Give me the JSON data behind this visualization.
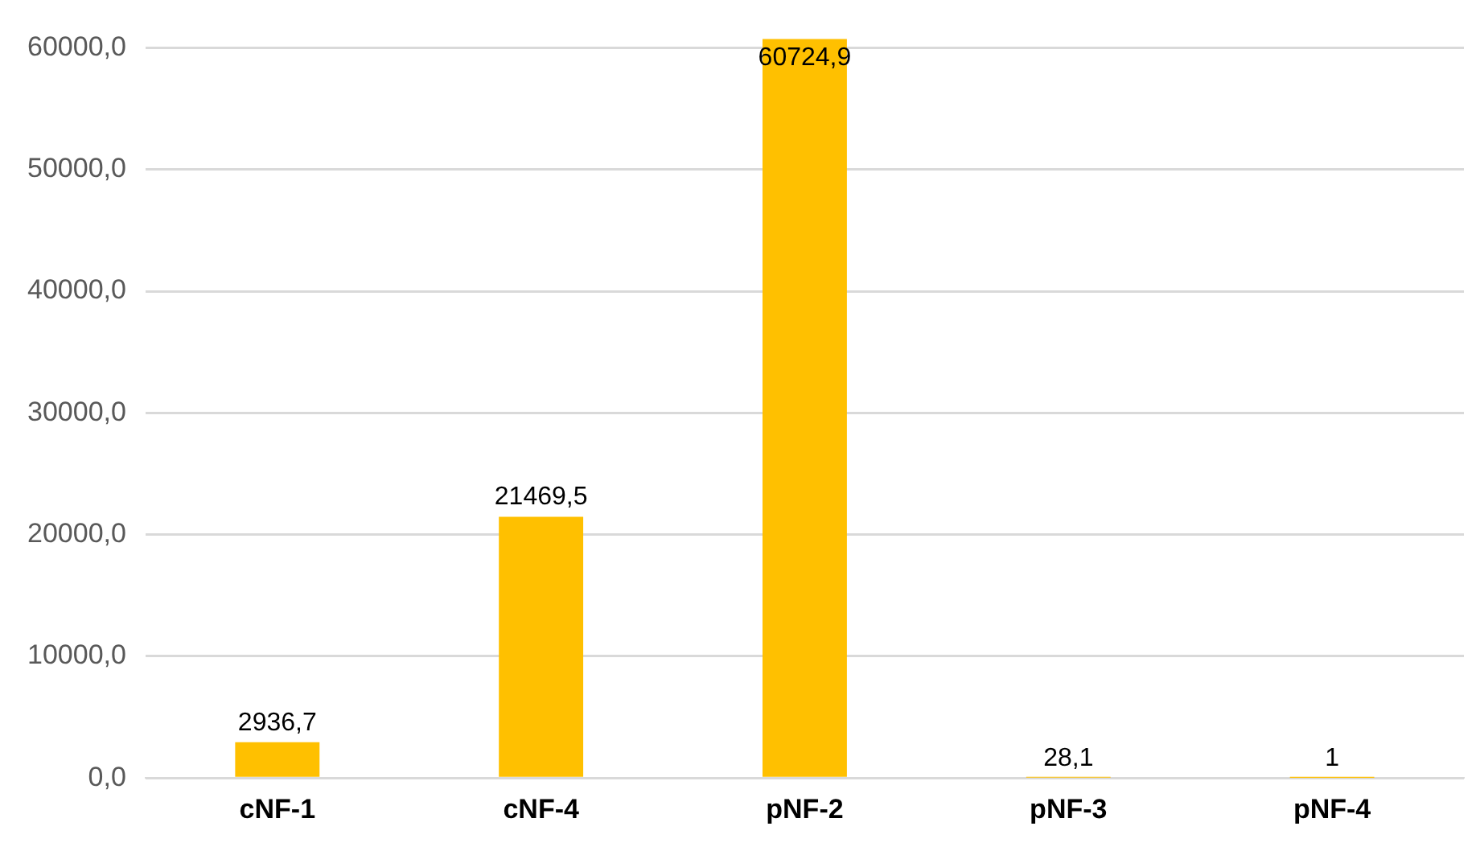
{
  "chart_data": {
    "type": "bar",
    "categories": [
      "cNF-1",
      "cNF-4",
      "pNF-2",
      "pNF-3",
      "pNF-4"
    ],
    "values": [
      2936.7,
      21469.5,
      60724.9,
      28.1,
      1
    ],
    "color": "#ffc000",
    "value_labels": [
      "2936,7",
      "21469,5",
      "60724,9",
      "28,1",
      "1"
    ],
    "ylim": [
      0,
      61000
    ],
    "yticks": [
      {
        "value": 0,
        "label": "0,0"
      },
      {
        "value": 10000,
        "label": "10000,0"
      },
      {
        "value": 20000,
        "label": "20000,0"
      },
      {
        "value": 30000,
        "label": "30000,0"
      },
      {
        "value": 40000,
        "label": "40000,0"
      },
      {
        "value": 50000,
        "label": "50000,0"
      },
      {
        "value": 60000,
        "label": "60000,0"
      }
    ],
    "grid": "y",
    "legend": false
  }
}
